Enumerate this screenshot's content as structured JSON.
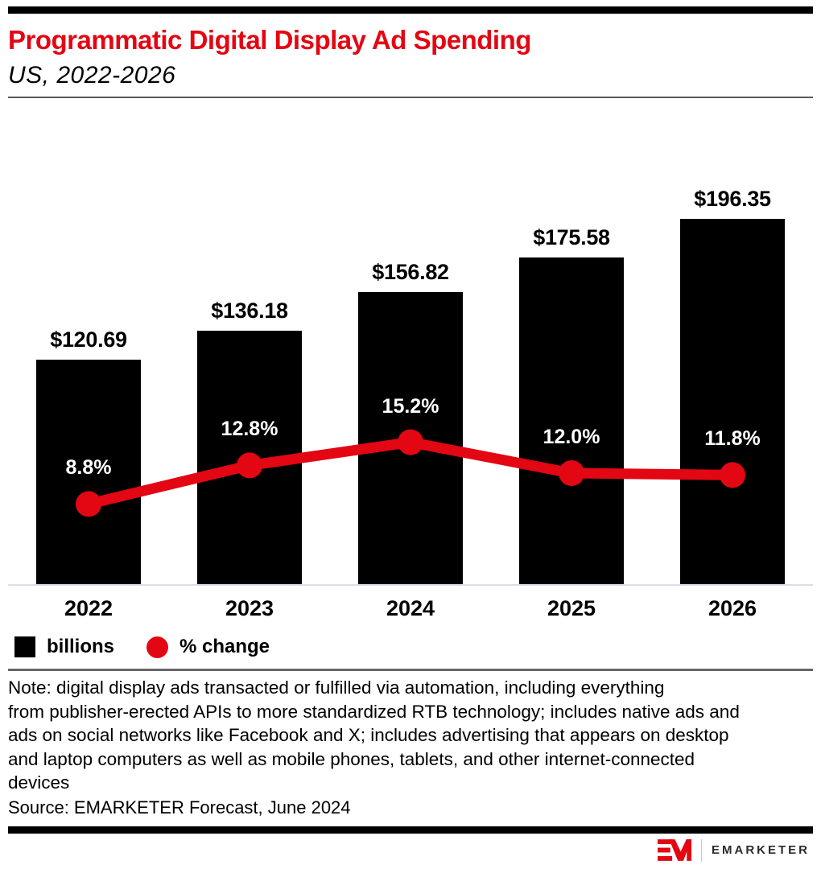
{
  "header": {
    "title": "Programmatic Digital Display Ad Spending",
    "subtitle": "US, 2022-2026",
    "title_color": "#e30613"
  },
  "chart_data": {
    "type": "bar-line-combo",
    "categories": [
      "2022",
      "2023",
      "2024",
      "2025",
      "2026"
    ],
    "series": [
      {
        "name": "billions",
        "type": "bar",
        "color": "#000000",
        "values": [
          120.69,
          136.18,
          156.82,
          175.58,
          196.35
        ],
        "labels": [
          "$120.69",
          "$136.18",
          "$156.82",
          "$175.58",
          "$196.35"
        ]
      },
      {
        "name": "% change",
        "type": "line",
        "color": "#e30613",
        "values": [
          8.8,
          12.8,
          15.2,
          12.0,
          11.8
        ],
        "labels": [
          "8.8%",
          "12.8%",
          "15.2%",
          "12.0%",
          "11.8%"
        ]
      }
    ],
    "legend": [
      {
        "label": "billions",
        "swatch": "square",
        "color": "#000000"
      },
      {
        "label": "% change",
        "swatch": "circle",
        "color": "#e30613"
      }
    ],
    "legend_position": "bottom-left",
    "grid": false,
    "title": "Programmatic Digital Display Ad Spending",
    "subtitle": "US, 2022-2026"
  },
  "note": "Note: digital display ads transacted or fulfilled via automation, including everything\nfrom publisher-erected APIs to more standardized RTB technology; includes native ads and\nads on social networks like Facebook and X; includes advertising that appears on desktop\nand laptop computers as well as mobile phones, tablets, and other internet-connected\ndevices",
  "source": "Source: EMARKETER Forecast, June 2024",
  "footer": {
    "brand": "EMARKETER"
  },
  "colors": {
    "accent_red": "#e30613",
    "bar_black": "#000000",
    "baseline_gray": "#d9dfe8",
    "divider_gray": "#595959",
    "note_divider_gray": "#666666",
    "brand_text": "#2b2b2b"
  }
}
